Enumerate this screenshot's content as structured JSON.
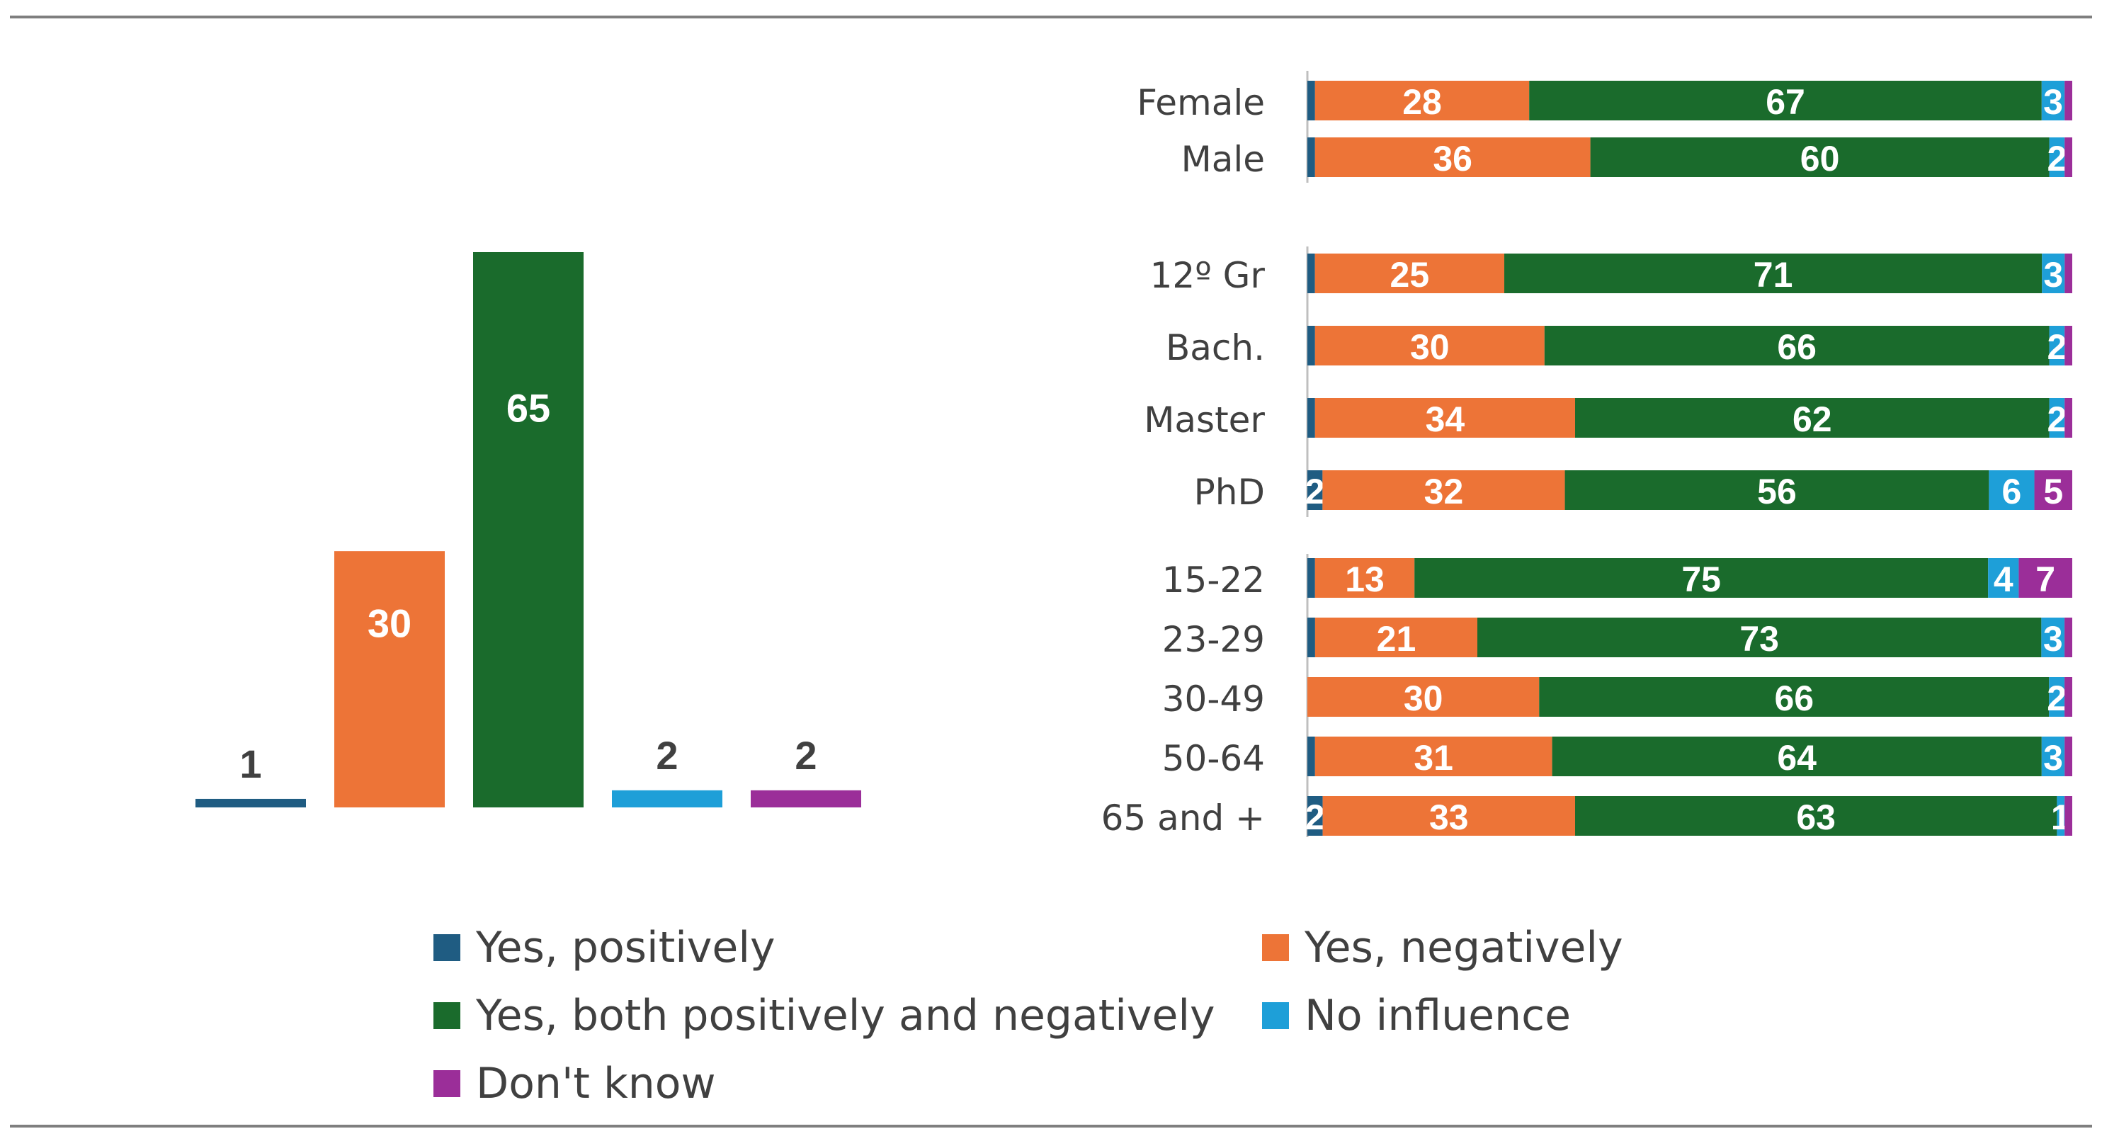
{
  "colors": {
    "yes_positively": "#1F5C82",
    "yes_negatively": "#ED7437",
    "both": "#1A6B2C",
    "no_influence": "#1E9FD8",
    "dont_know": "#9B2E99"
  },
  "chart_data": [
    {
      "type": "bar",
      "categories": [
        "Yes, positively",
        "Yes, negatively",
        "Yes, both positively and negatively",
        "No influence",
        "Don't know"
      ],
      "values": [
        1,
        30,
        65,
        2,
        2
      ],
      "title": "",
      "xlabel": "",
      "ylabel": "",
      "ylim": [
        0,
        70
      ],
      "grid": false
    },
    {
      "type": "bar",
      "orientation": "horizontal",
      "stacked": true,
      "categories": [
        "Female",
        "Male",
        "12º Gr",
        "Bach.",
        "Master",
        "PhD",
        "15-22",
        "23-29",
        "30-49",
        "50-64",
        "65 and +"
      ],
      "groups": [
        [
          "Female",
          "Male"
        ],
        [
          "12º Gr",
          "Bach.",
          "Master",
          "PhD"
        ],
        [
          "15-22",
          "23-29",
          "30-49",
          "50-64",
          "65 and +"
        ]
      ],
      "series": [
        {
          "name": "Yes, positively",
          "values": [
            1,
            1,
            1,
            1,
            1,
            2,
            1,
            1,
            0,
            1,
            2
          ]
        },
        {
          "name": "Yes, negatively",
          "values": [
            28,
            36,
            25,
            30,
            34,
            32,
            13,
            21,
            30,
            31,
            33
          ]
        },
        {
          "name": "Yes, both positively and negatively",
          "values": [
            67,
            60,
            71,
            66,
            62,
            56,
            75,
            73,
            66,
            64,
            63
          ]
        },
        {
          "name": "No influence",
          "values": [
            3,
            2,
            3,
            2,
            2,
            6,
            4,
            3,
            2,
            3,
            1
          ]
        },
        {
          "name": "Don't know",
          "values": [
            1,
            1,
            1,
            1,
            1,
            5,
            7,
            1,
            1,
            1,
            1
          ]
        }
      ],
      "data_labels": [
        [
          "",
          "28",
          "67",
          "3",
          ""
        ],
        [
          "",
          "36",
          "60",
          "2",
          ""
        ],
        [
          "",
          "25",
          "71",
          "3",
          ""
        ],
        [
          "",
          "30",
          "66",
          "2",
          ""
        ],
        [
          "",
          "34",
          "62",
          "2",
          ""
        ],
        [
          "2",
          "32",
          "56",
          "6",
          "5"
        ],
        [
          "",
          "13",
          "75",
          "4",
          "7"
        ],
        [
          "",
          "21",
          "73",
          "3",
          ""
        ],
        [
          "",
          "30",
          "66",
          "2",
          ""
        ],
        [
          "",
          "31",
          "64",
          "3",
          ""
        ],
        [
          "2",
          "33",
          "63",
          "1",
          ""
        ]
      ],
      "xlim": [
        0,
        100
      ],
      "grid": false
    }
  ],
  "legend": {
    "placement": "bottom",
    "items": [
      {
        "label": "Yes, positively",
        "color": "#1F5C82"
      },
      {
        "label": "Yes, negatively",
        "color": "#ED7437"
      },
      {
        "label": "Yes, both positively and negatively",
        "color": "#1A6B2C"
      },
      {
        "label": "No influence",
        "color": "#1E9FD8"
      },
      {
        "label": "Don't know",
        "color": "#9B2E99"
      }
    ]
  }
}
